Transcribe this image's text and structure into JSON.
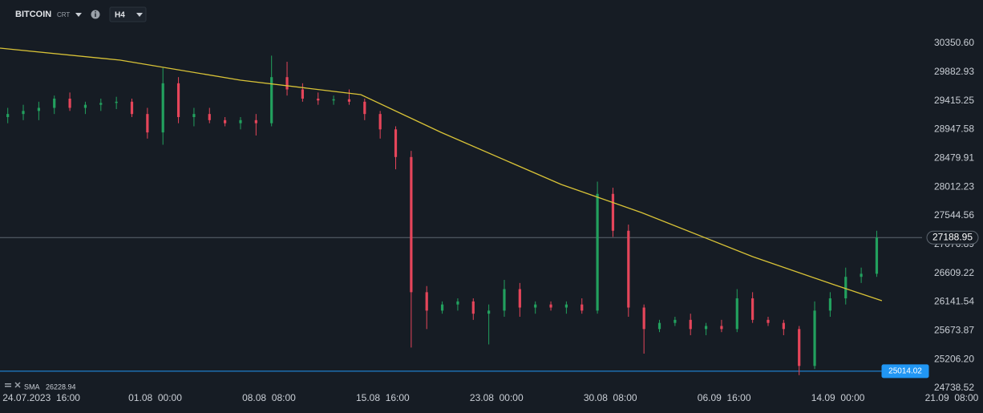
{
  "chart_data": {
    "type": "candlestick",
    "title": "BITCOIN",
    "subtitle": "CRT",
    "timeframe": "H4",
    "up_color": "#22a05e",
    "down_color": "#e5455a",
    "x": [
      "2023-07-22 12:00",
      "2023-07-23 12:00",
      "2023-07-24 12:00",
      "2023-07-25 12:00",
      "2023-07-26 12:00",
      "2023-07-27 12:00",
      "2023-07-28 12:00",
      "2023-07-29 12:00",
      "2023-07-30 12:00",
      "2023-07-31 12:00",
      "2023-08-01 12:00",
      "2023-08-02 12:00",
      "2023-08-03 12:00",
      "2023-08-04 12:00",
      "2023-08-05 12:00",
      "2023-08-06 12:00",
      "2023-08-07 12:00",
      "2023-08-08 12:00",
      "2023-08-09 12:00",
      "2023-08-10 12:00",
      "2023-08-11 12:00",
      "2023-08-12 12:00",
      "2023-08-13 12:00",
      "2023-08-14 12:00",
      "2023-08-15 12:00",
      "2023-08-16 12:00",
      "2023-08-17 12:00",
      "2023-08-18 12:00",
      "2023-08-19 12:00",
      "2023-08-20 12:00",
      "2023-08-21 12:00",
      "2023-08-22 12:00",
      "2023-08-23 12:00",
      "2023-08-24 12:00",
      "2023-08-25 12:00",
      "2023-08-26 12:00",
      "2023-08-27 12:00",
      "2023-08-28 12:00",
      "2023-08-29 12:00",
      "2023-08-30 12:00",
      "2023-08-31 12:00",
      "2023-09-01 12:00",
      "2023-09-02 12:00",
      "2023-09-03 12:00",
      "2023-09-04 12:00",
      "2023-09-05 12:00",
      "2023-09-06 12:00",
      "2023-09-07 12:00",
      "2023-09-08 12:00",
      "2023-09-09 12:00",
      "2023-09-10 12:00",
      "2023-09-11 12:00",
      "2023-09-12 12:00",
      "2023-09-13 12:00",
      "2023-09-14 12:00",
      "2023-09-15 12:00",
      "2023-09-16 12:00"
    ],
    "open": [
      29150,
      29200,
      29250,
      29300,
      29450,
      29300,
      29350,
      29380,
      29400,
      29200,
      28900,
      29700,
      29150,
      29200,
      29100,
      29050,
      29100,
      29050,
      29800,
      29600,
      29450,
      29420,
      29440,
      29400,
      29200,
      28950,
      28500,
      26300,
      26000,
      26100,
      26150,
      25950,
      26000,
      26350,
      26050,
      26100,
      26050,
      26100,
      26000,
      27900,
      27300,
      26050,
      25700,
      25800,
      25850,
      25700,
      25750,
      25700,
      26200,
      25850,
      25800,
      25700,
      25100,
      26000,
      26200,
      26550,
      26600
    ],
    "high": [
      29300,
      29350,
      29400,
      29500,
      29550,
      29400,
      29450,
      29480,
      29450,
      29300,
      29950,
      29800,
      29300,
      29300,
      29150,
      29150,
      29200,
      30150,
      30050,
      29700,
      29550,
      29500,
      29600,
      29450,
      29250,
      29000,
      28600,
      26400,
      26150,
      26200,
      26200,
      26100,
      26500,
      26450,
      26150,
      26150,
      26150,
      26200,
      28100,
      28000,
      27400,
      26100,
      25850,
      25900,
      25950,
      25800,
      25850,
      26350,
      26300,
      25900,
      25850,
      25750,
      26150,
      26300,
      26700,
      26700,
      27300
    ],
    "low": [
      29050,
      29100,
      29100,
      29200,
      29250,
      29200,
      29250,
      29280,
      29150,
      28800,
      28700,
      29050,
      29000,
      29050,
      29000,
      28950,
      28850,
      29000,
      29500,
      29400,
      29350,
      29350,
      29350,
      29100,
      28800,
      28300,
      25400,
      25700,
      25950,
      26000,
      25850,
      25450,
      25900,
      25900,
      25950,
      26000,
      25950,
      25950,
      25950,
      27200,
      25900,
      25300,
      25650,
      25750,
      25600,
      25600,
      25650,
      25650,
      25800,
      25750,
      25600,
      24950,
      25050,
      25900,
      26100,
      26450,
      26550
    ],
    "close": [
      29200,
      29250,
      29300,
      29450,
      29300,
      29350,
      29380,
      29400,
      29200,
      28900,
      29700,
      29150,
      29200,
      29100,
      29050,
      29100,
      29050,
      29800,
      29600,
      29450,
      29420,
      29440,
      29400,
      29200,
      28950,
      28500,
      26300,
      26000,
      26100,
      26150,
      25950,
      26000,
      26350,
      26050,
      26100,
      26050,
      26100,
      26000,
      27900,
      27300,
      26050,
      25700,
      25800,
      25850,
      25700,
      25750,
      25700,
      26200,
      25850,
      25800,
      25700,
      25100,
      26000,
      26200,
      26550,
      26600,
      27190
    ],
    "sma": {
      "name": "SMA",
      "value": 26228.94,
      "color": "#d9c337",
      "x": [
        "2023-07-22 00:00",
        "2023-07-29 18:00",
        "2023-08-06 12:00",
        "2023-08-14 06:00",
        "2023-08-19 10:00",
        "2023-08-27 04:00",
        "2023-09-01 08:00",
        "2023-09-08 12:00",
        "2023-09-13 18:00",
        "2023-09-16 20:00"
      ],
      "values": [
        30272,
        30076,
        29750,
        29515,
        28902,
        28054,
        27597,
        26879,
        26422,
        26161
      ]
    },
    "price_lines": [
      {
        "value": 27188.95,
        "color": "#5d6670"
      },
      {
        "value": 25014.02,
        "color": "#2196f3"
      }
    ],
    "xlim": [
      "2023-07-22 00:00",
      "2023-09-21 08:00"
    ],
    "xticks": [
      {
        "value": "2023-07-24 16:00",
        "label": "24.07.2023  16:00"
      },
      {
        "value": "2023-08-01 00:00",
        "label": "01.08  00:00"
      },
      {
        "value": "2023-08-08 08:00",
        "label": "08.08  08:00"
      },
      {
        "value": "2023-08-15 16:00",
        "label": "15.08  16:00"
      },
      {
        "value": "2023-08-23 00:00",
        "label": "23.08  00:00"
      },
      {
        "value": "2023-08-30 08:00",
        "label": "30.08  08:00"
      },
      {
        "value": "2023-09-06 16:00",
        "label": "06.09  16:00"
      },
      {
        "value": "2023-09-14 00:00",
        "label": "14.09  00:00"
      },
      {
        "value": "2023-09-21 08:00",
        "label": "21.09  08:00"
      }
    ],
    "ylim": [
      24738.52,
      30350.6
    ],
    "yticks": [
      {
        "value": 30350.6,
        "label": "30350.60"
      },
      29882.93,
      29415.25,
      28947.58,
      28479.91,
      28012.23,
      27544.56,
      27076.89,
      26609.22,
      26141.54,
      25673.87,
      {
        "value": 25206.2,
        "label": "25206.20"
      },
      24738.52
    ]
  }
}
